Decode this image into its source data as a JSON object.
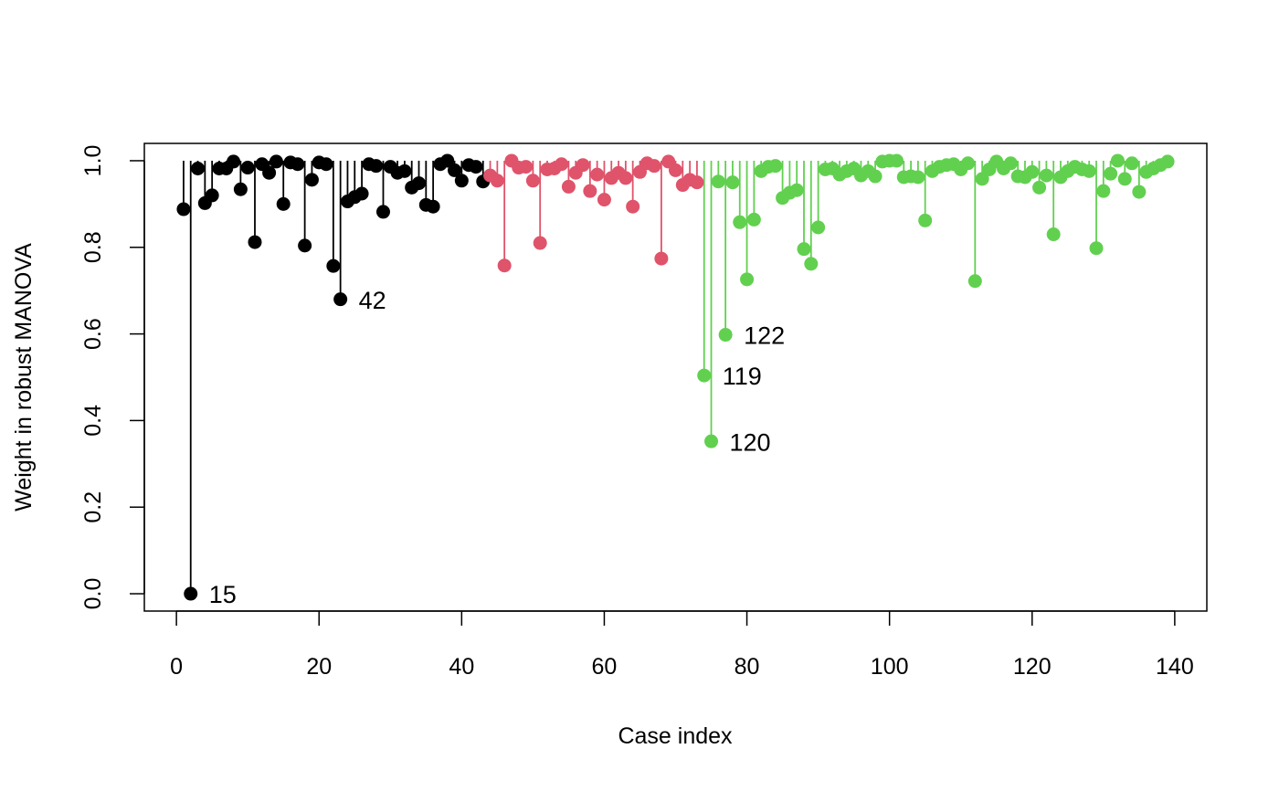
{
  "chart_data": {
    "type": "scatter",
    "style": "needle",
    "xlabel": "Case index",
    "ylabel": "Weight in robust MANOVA",
    "xlim": [
      -4.5,
      144.5
    ],
    "ylim": [
      -0.04,
      1.04
    ],
    "baseline": 1.0,
    "x_ticks": [
      0,
      20,
      40,
      60,
      80,
      100,
      120,
      140
    ],
    "x_tick_labels": [
      "0",
      "20",
      "40",
      "60",
      "80",
      "100",
      "120",
      "140"
    ],
    "y_ticks": [
      0.0,
      0.2,
      0.4,
      0.6,
      0.8,
      1.0
    ],
    "y_tick_labels": [
      "0.0",
      "0.2",
      "0.4",
      "0.6",
      "0.8",
      "1.0"
    ],
    "grid": false,
    "legend": "none",
    "series": [
      {
        "color": "#000000",
        "x": [
          1,
          2,
          3,
          4,
          5,
          6,
          7,
          8,
          9,
          10,
          11,
          12,
          13,
          14,
          15,
          16,
          17,
          18,
          19,
          20,
          21,
          22,
          23,
          24,
          25,
          26,
          27,
          28,
          29,
          30,
          31,
          32,
          33,
          34,
          35,
          36,
          37,
          38,
          39,
          40,
          41,
          42,
          43
        ],
        "values": [
          0.888,
          0.0,
          0.982,
          0.902,
          0.92,
          0.982,
          0.982,
          0.998,
          0.934,
          0.984,
          0.812,
          0.992,
          0.972,
          0.998,
          0.9,
          0.996,
          0.992,
          0.804,
          0.956,
          0.996,
          0.992,
          0.757,
          0.68,
          0.906,
          0.916,
          0.924,
          0.992,
          0.988,
          0.882,
          0.986,
          0.972,
          0.976,
          0.938,
          0.948,
          0.898,
          0.894,
          0.992,
          1.0,
          0.978,
          0.954,
          0.99,
          0.986,
          0.952
        ]
      },
      {
        "color": "#DF536B",
        "x": [
          44,
          45,
          46,
          47,
          48,
          49,
          50,
          51,
          52,
          53,
          54,
          55,
          56,
          57,
          58,
          59,
          60,
          61,
          62,
          63,
          64,
          65,
          66,
          67,
          68,
          69,
          70,
          71,
          72,
          73
        ],
        "values": [
          0.966,
          0.954,
          0.758,
          1.0,
          0.984,
          0.986,
          0.954,
          0.81,
          0.98,
          0.982,
          0.992,
          0.94,
          0.972,
          0.99,
          0.93,
          0.968,
          0.91,
          0.96,
          0.972,
          0.96,
          0.894,
          0.974,
          0.994,
          0.988,
          0.774,
          0.998,
          0.978,
          0.944,
          0.956,
          0.95
        ]
      },
      {
        "color": "#61D04F",
        "x": [
          74,
          75,
          76,
          77,
          78,
          79,
          80,
          81,
          82,
          83,
          84,
          85,
          86,
          87,
          88,
          89,
          90,
          91,
          92,
          93,
          94,
          95,
          96,
          97,
          98,
          99,
          100,
          101,
          102,
          103,
          104,
          105,
          106,
          107,
          108,
          109,
          110,
          111,
          112,
          113,
          114,
          115,
          116,
          117,
          118,
          119,
          120,
          121,
          122,
          123,
          124,
          125,
          126,
          127,
          128,
          129,
          130,
          131,
          132,
          133,
          134,
          135,
          136,
          137,
          138,
          139
        ],
        "values": [
          0.504,
          0.352,
          0.952,
          0.598,
          0.95,
          0.858,
          0.726,
          0.864,
          0.976,
          0.986,
          0.988,
          0.914,
          0.926,
          0.932,
          0.796,
          0.762,
          0.846,
          0.98,
          0.982,
          0.968,
          0.976,
          0.982,
          0.966,
          0.976,
          0.964,
          0.998,
          1.0,
          1.0,
          0.962,
          0.964,
          0.962,
          0.862,
          0.976,
          0.986,
          0.99,
          0.992,
          0.98,
          0.994,
          0.722,
          0.958,
          0.98,
          0.998,
          0.982,
          0.994,
          0.964,
          0.962,
          0.974,
          0.938,
          0.966,
          0.83,
          0.962,
          0.976,
          0.986,
          0.98,
          0.976,
          0.798,
          0.93,
          0.97,
          1.0,
          0.958,
          0.994,
          0.928,
          0.974,
          0.982,
          0.99,
          0.998
        ]
      }
    ],
    "annotations": [
      {
        "x": 2,
        "y": 0.0,
        "text": "15",
        "color": "#000000"
      },
      {
        "x": 23,
        "y": 0.68,
        "text": "42",
        "color": "#000000"
      },
      {
        "x": 77,
        "y": 0.598,
        "text": "122",
        "color": "#000000"
      },
      {
        "x": 74,
        "y": 0.504,
        "text": "119",
        "color": "#000000"
      },
      {
        "x": 75,
        "y": 0.352,
        "text": "120",
        "color": "#000000"
      }
    ]
  }
}
